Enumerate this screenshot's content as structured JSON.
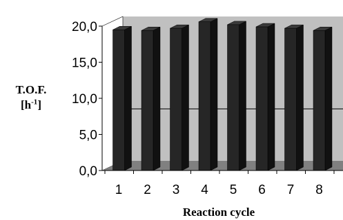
{
  "chart_data": {
    "type": "bar",
    "categories": [
      "1",
      "2",
      "3",
      "4",
      "5",
      "6",
      "7",
      "8"
    ],
    "values": [
      19.5,
      19.4,
      19.7,
      20.6,
      20.2,
      19.9,
      19.7,
      19.4
    ],
    "xlabel": "Reaction cycle",
    "ylabel_line1": "T.O.F.",
    "ylabel_unit_base": "[h",
    "ylabel_unit_exp": "-1",
    "ylabel_unit_close": "]",
    "ylim": [
      0,
      20
    ],
    "yticks": [
      "0,0",
      "5,0",
      "10,0",
      "15,0",
      "20,0"
    ],
    "ytick_values": [
      0,
      5,
      10,
      15,
      20
    ],
    "reference_line_value": 7.2,
    "bar_color": "#262626",
    "back_wall_color": "#c0c0c0",
    "floor_color": "#808080",
    "style": "3d"
  }
}
